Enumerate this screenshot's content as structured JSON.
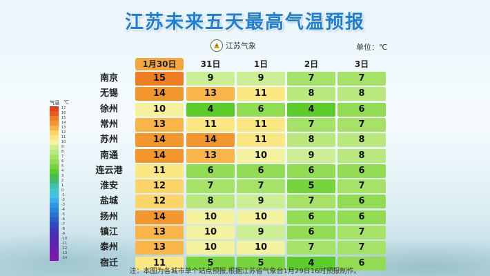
{
  "title": "江苏未来五天最高气温预报",
  "logo_text": "江苏气象",
  "unit_label": "单位：℃",
  "columns": [
    "1月30日",
    "31日",
    "1日",
    "2日",
    "3日"
  ],
  "rows": [
    {
      "city": "南京",
      "temps": [
        15,
        9,
        9,
        7,
        7
      ]
    },
    {
      "city": "无锡",
      "temps": [
        14,
        13,
        11,
        8,
        8
      ]
    },
    {
      "city": "徐州",
      "temps": [
        10,
        4,
        6,
        4,
        6
      ]
    },
    {
      "city": "常州",
      "temps": [
        13,
        11,
        11,
        7,
        7
      ]
    },
    {
      "city": "苏州",
      "temps": [
        14,
        14,
        11,
        8,
        8
      ]
    },
    {
      "city": "南通",
      "temps": [
        14,
        13,
        10,
        9,
        8
      ]
    },
    {
      "city": "连云港",
      "temps": [
        11,
        6,
        6,
        6,
        6
      ]
    },
    {
      "city": "淮安",
      "temps": [
        12,
        7,
        7,
        5,
        7
      ]
    },
    {
      "city": "盐城",
      "temps": [
        12,
        8,
        9,
        7,
        6
      ]
    },
    {
      "city": "扬州",
      "temps": [
        14,
        10,
        10,
        6,
        6
      ]
    },
    {
      "city": "镇江",
      "temps": [
        13,
        10,
        9,
        6,
        7
      ]
    },
    {
      "city": "泰州",
      "temps": [
        13,
        10,
        10,
        7,
        7
      ]
    },
    {
      "city": "宿迁",
      "temps": [
        11,
        5,
        5,
        4,
        6
      ]
    }
  ],
  "temp_colors": {
    "4": "#5ccc2a",
    "5": "#78d43c",
    "6": "#92dc54",
    "7": "#a6e268",
    "8": "#b8e87e",
    "9": "#ccef96",
    "10": "#f4f29e",
    "11": "#fbe882",
    "12": "#fbd46a",
    "13": "#f9b548",
    "14": "#f4962e",
    "15": "#ef7d22"
  },
  "legend": {
    "header_left": "气温",
    "header_right": "℃",
    "labels": [
      "17",
      "16",
      "15",
      "14",
      "13",
      "12",
      "11",
      "10",
      "9",
      "8",
      "7",
      "6",
      "5",
      "4",
      "3",
      "2",
      "1",
      "0",
      "-1",
      "-2",
      "-3",
      "-4",
      "-5",
      "-6",
      "-7",
      "-8",
      "-9",
      "-10",
      "-11",
      "-12",
      "-13",
      "-14"
    ],
    "colors": [
      "#e0421a",
      "#ea5a1e",
      "#ef7d22",
      "#f4962e",
      "#f9b548",
      "#fbd46a",
      "#fbe882",
      "#f4f29e",
      "#ccef96",
      "#b8e87e",
      "#a6e268",
      "#92dc54",
      "#78d43c",
      "#5ccc2a",
      "#46c040",
      "#3cbc78",
      "#3ec2aa",
      "#44c8d0",
      "#46bee6",
      "#3aaee6",
      "#2f98e2",
      "#2a84dc",
      "#2a6fd2",
      "#2c5cc8",
      "#3049c0",
      "#3a3ab8",
      "#4630b4",
      "#5228b2",
      "#5e22b0",
      "#6a1eae",
      "#761aac",
      "#8216aa"
    ]
  },
  "note": "注：本图为各城市单个站点预报,根据江苏省气象台1月29日16时预报制作。"
}
